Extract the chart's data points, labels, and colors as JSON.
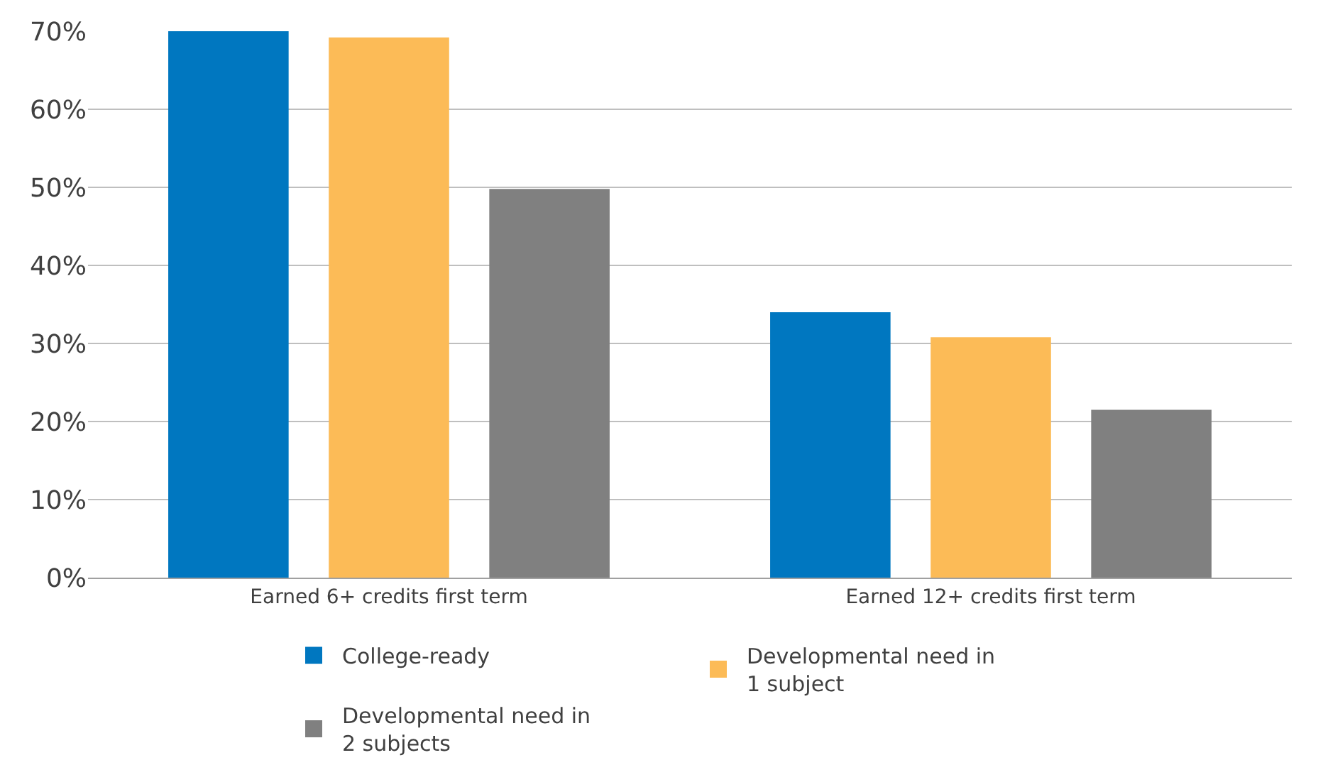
{
  "chart_data": {
    "type": "bar",
    "categories": [
      "Earned 6+ credits first term",
      "Earned 12+ credits first term"
    ],
    "series": [
      {
        "name": "College-ready",
        "color": "#0077c0",
        "values": [
          70,
          34
        ]
      },
      {
        "name": "Developmental need in 1 subject",
        "color": "#fcbb57",
        "values": [
          69.2,
          30.8
        ]
      },
      {
        "name": "Developmental need in 2 subjects",
        "color": "#808080",
        "values": [
          49.8,
          21.5
        ]
      }
    ],
    "ylim": [
      0,
      70
    ],
    "yticks": [
      {
        "value": 0,
        "label": "0%"
      },
      {
        "value": 10,
        "label": "10%"
      },
      {
        "value": 20,
        "label": "20%"
      },
      {
        "value": 30,
        "label": "30%"
      },
      {
        "value": 40,
        "label": "40%"
      },
      {
        "value": 50,
        "label": "50%"
      },
      {
        "value": 60,
        "label": "60%"
      },
      {
        "value": 70,
        "label": "70%"
      }
    ],
    "grid": "y",
    "legend": "bottom"
  }
}
